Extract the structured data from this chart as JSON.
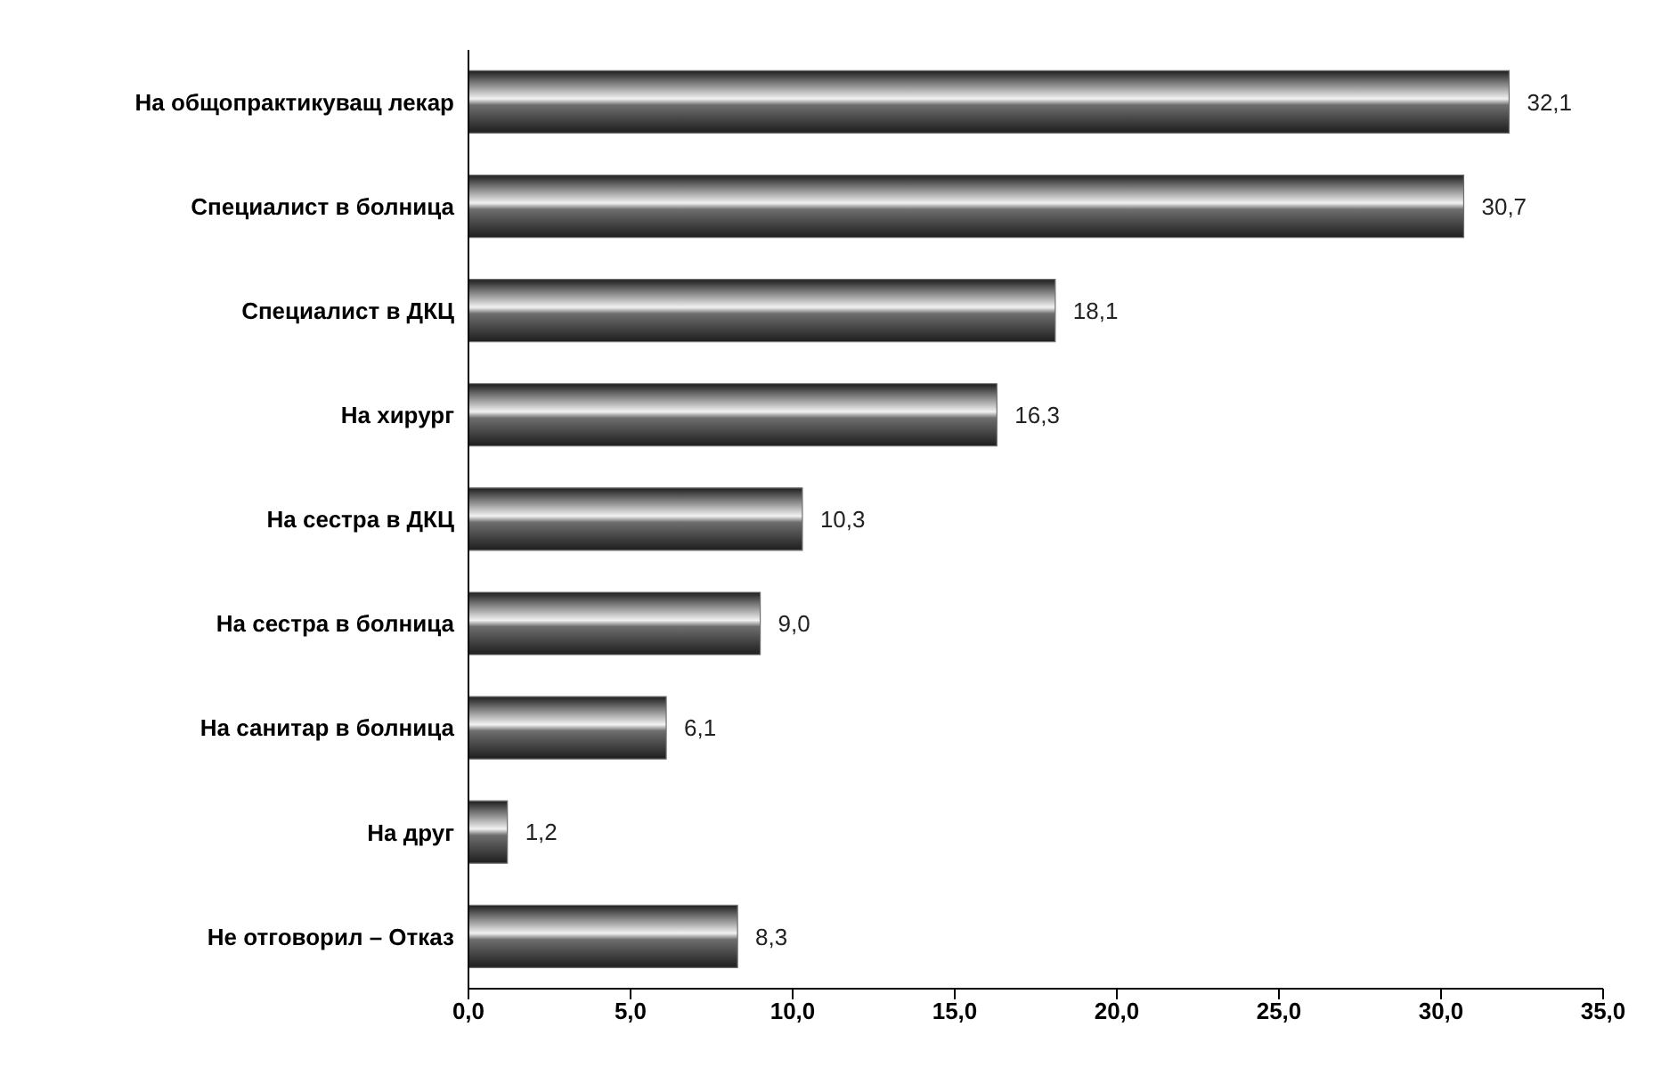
{
  "chart_data": {
    "type": "bar",
    "orientation": "horizontal",
    "categories": [
      "На общопрактикуващ лекар",
      "Специалист в болница",
      "Специалист в ДКЦ",
      "На хирург",
      "На сестра в ДКЦ",
      "На сестра в болница",
      "На санитар в болница",
      "На друг",
      "Не отговорил – Отказ"
    ],
    "values": [
      32.1,
      30.7,
      18.1,
      16.3,
      10.3,
      9.0,
      6.1,
      1.2,
      8.3
    ],
    "value_labels": [
      "32,1",
      "30,7",
      "18,1",
      "16,3",
      "10,3",
      "9,0",
      "6,1",
      "1,2",
      "8,3"
    ],
    "color": "#6e6e6e",
    "xlim": [
      0,
      35
    ],
    "xticks": [
      {
        "value": 0,
        "label": "0,0"
      },
      {
        "value": 5,
        "label": "5,0"
      },
      {
        "value": 10,
        "label": "10,0"
      },
      {
        "value": 15,
        "label": "15,0"
      },
      {
        "value": 20,
        "label": "20,0"
      },
      {
        "value": 25,
        "label": "25,0"
      },
      {
        "value": 30,
        "label": "30,0"
      },
      {
        "value": 35,
        "label": "35,0"
      }
    ],
    "grid": false,
    "legend": false
  }
}
